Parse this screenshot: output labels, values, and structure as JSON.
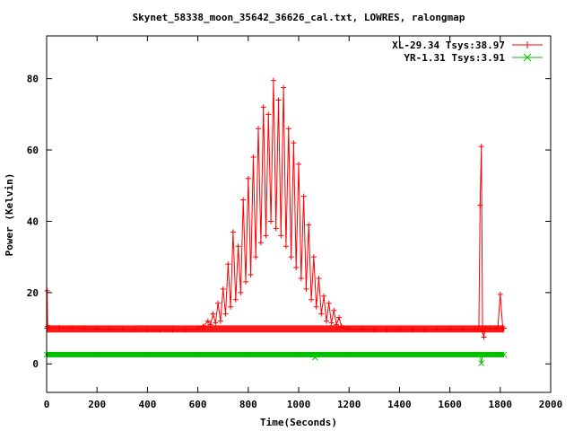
{
  "chart_data": {
    "type": "line",
    "title": "Skynet_58338_moon_35642_36626_cal.txt, LOWRES, ralongmap",
    "xlabel": "Time(Seconds)",
    "ylabel": "Power (Kelvin)",
    "xlim": [
      0,
      2000
    ],
    "ylim": [
      -8,
      92
    ],
    "xticks": [
      0,
      200,
      400,
      600,
      800,
      1000,
      1200,
      1400,
      1600,
      1800,
      2000
    ],
    "yticks": [
      0,
      20,
      40,
      60,
      80
    ],
    "grid": false,
    "legend_position": "top-right",
    "series": [
      {
        "name": "XL-29.34 Tsys:38.97",
        "color": "#ff0000",
        "marker": "plus",
        "x": [
          0,
          2,
          4,
          10,
          50,
          100,
          150,
          200,
          250,
          300,
          350,
          400,
          450,
          500,
          550,
          600,
          620,
          640,
          650,
          660,
          670,
          680,
          690,
          700,
          710,
          720,
          730,
          740,
          750,
          760,
          770,
          780,
          790,
          800,
          810,
          820,
          830,
          840,
          850,
          860,
          870,
          880,
          890,
          900,
          910,
          920,
          930,
          940,
          950,
          960,
          970,
          980,
          990,
          1000,
          1010,
          1020,
          1030,
          1040,
          1050,
          1060,
          1070,
          1080,
          1090,
          1100,
          1110,
          1120,
          1130,
          1140,
          1150,
          1160,
          1170,
          1180,
          1200,
          1250,
          1300,
          1350,
          1400,
          1450,
          1500,
          1550,
          1600,
          1650,
          1700,
          1715,
          1720,
          1725,
          1730,
          1735,
          1740,
          1760,
          1780,
          1790,
          1800,
          1810,
          1815
        ],
        "y": [
          10,
          20.5,
          10.5,
          10.2,
          10.1,
          10.0,
          9.9,
          9.8,
          9.7,
          9.6,
          9.6,
          9.5,
          9.5,
          9.5,
          9.6,
          9.8,
          10.5,
          12,
          11,
          14,
          11.5,
          17,
          12,
          21,
          14,
          28,
          16,
          37,
          18,
          33,
          20,
          46,
          23,
          52,
          25,
          58,
          30,
          66,
          34,
          72,
          36,
          70,
          40,
          79.5,
          38,
          74,
          36,
          77.5,
          33,
          66,
          30,
          62,
          27,
          56,
          24,
          47,
          21,
          39,
          18,
          30,
          16,
          24,
          14,
          19,
          12,
          17,
          11.5,
          15,
          11,
          13,
          10.5,
          10,
          9.8,
          9.7,
          9.6,
          9.6,
          9.6,
          9.6,
          9.6,
          9.7,
          9.7,
          9.7,
          9.8,
          9.8,
          44.5,
          61,
          9,
          7.5,
          10,
          10,
          9.8,
          9.9,
          19.5,
          10,
          10
        ]
      },
      {
        "name": "YR-1.31 Tsys:3.91",
        "color": "#00c000",
        "marker": "cross",
        "x": [
          0,
          200,
          400,
          600,
          800,
          1000,
          1060,
          1065,
          1070,
          1200,
          1400,
          1600,
          1700,
          1720,
          1725,
          1730,
          1800,
          1815
        ],
        "y": [
          2.6,
          2.6,
          2.6,
          2.6,
          2.6,
          2.6,
          2.6,
          1.8,
          2.6,
          2.6,
          2.6,
          2.6,
          2.6,
          2.6,
          0.2,
          2.6,
          2.6,
          2.6
        ]
      }
    ]
  }
}
